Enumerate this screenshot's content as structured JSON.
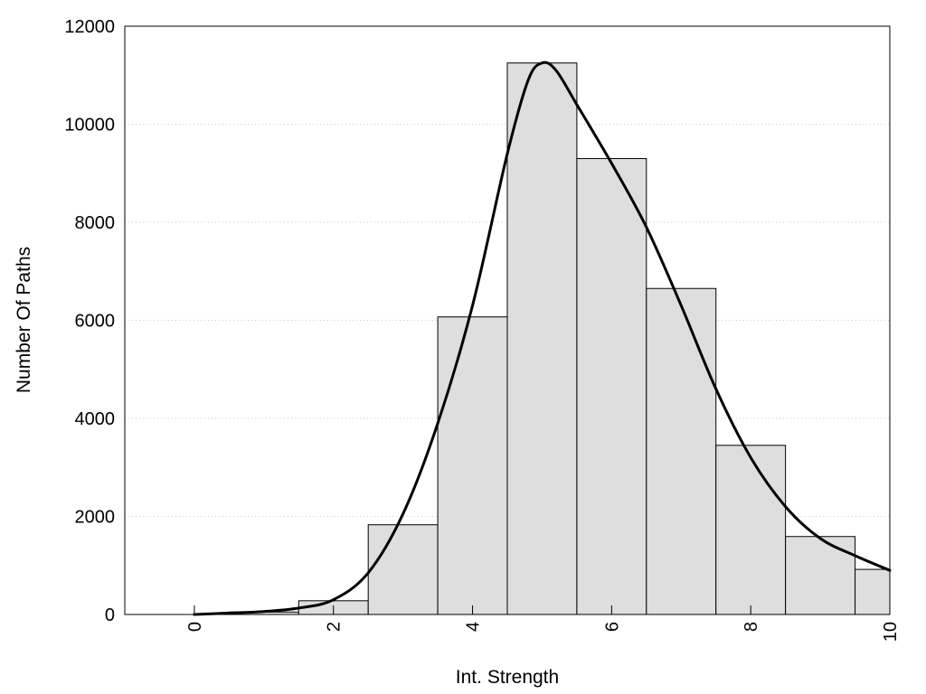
{
  "chart_data": {
    "type": "bar",
    "title": "",
    "xlabel": "Int. Strength",
    "ylabel": "Number Of Paths",
    "xlim": [
      -1,
      10
    ],
    "ylim": [
      0,
      12000
    ],
    "grid": "horizontal dotted",
    "legend": "none",
    "x_ticks": [
      0,
      2,
      4,
      6,
      8,
      10
    ],
    "y_ticks": [
      0,
      2000,
      4000,
      6000,
      8000,
      10000,
      12000
    ],
    "colors": {
      "bar_fill": "#dedede",
      "bar_stroke": "#000000",
      "curve": "#000000",
      "grid": "#cccccc"
    },
    "bars": [
      {
        "x0": 0,
        "x1": 0.5,
        "value": 0
      },
      {
        "x0": 0.5,
        "x1": 1.5,
        "value": 50
      },
      {
        "x0": 1.5,
        "x1": 2.5,
        "value": 280
      },
      {
        "x0": 2.5,
        "x1": 3.5,
        "value": 1830
      },
      {
        "x0": 3.5,
        "x1": 4.5,
        "value": 6070
      },
      {
        "x0": 4.5,
        "x1": 5.5,
        "value": 11250
      },
      {
        "x0": 5.5,
        "x1": 6.5,
        "value": 9300
      },
      {
        "x0": 6.5,
        "x1": 7.5,
        "value": 6650
      },
      {
        "x0": 7.5,
        "x1": 8.5,
        "value": 3450
      },
      {
        "x0": 8.5,
        "x1": 9.5,
        "value": 1590
      },
      {
        "x0": 9.5,
        "x1": 10,
        "value": 920
      }
    ],
    "series": [
      {
        "type": "line",
        "x": [
          0,
          0.5,
          1,
          1.5,
          2,
          2.5,
          3,
          3.5,
          4,
          4.5,
          4.8,
          5,
          5.2,
          5.5,
          6,
          6.5,
          7,
          7.5,
          8,
          8.5,
          9,
          9.5,
          10
        ],
        "y": [
          0,
          30,
          60,
          130,
          300,
          850,
          2050,
          3900,
          6300,
          9400,
          10900,
          11250,
          11100,
          10400,
          9200,
          7900,
          6300,
          4600,
          3200,
          2200,
          1550,
          1200,
          900
        ]
      }
    ]
  }
}
